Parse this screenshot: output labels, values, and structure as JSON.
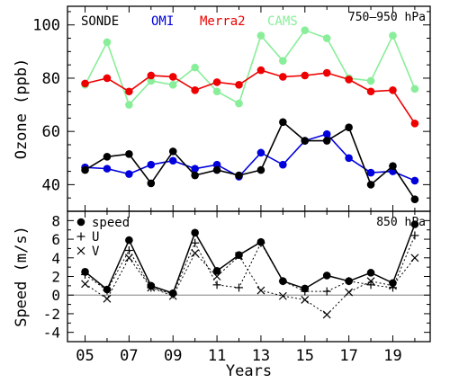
{
  "chart_data": [
    {
      "type": "line",
      "annotation": "750–950 hPa",
      "ylabel": "Ozone (ppb)",
      "ylim": [
        30,
        107
      ],
      "yticks": [
        40,
        60,
        80,
        100
      ],
      "x": [
        2005,
        2006,
        2007,
        2008,
        2009,
        2010,
        2011,
        2012,
        2013,
        2014,
        2015,
        2016,
        2017,
        2018,
        2019,
        2020
      ],
      "series": [
        {
          "name": "SONDE",
          "color": "#000000",
          "values": [
            45.5,
            50.5,
            51.5,
            40.5,
            52.5,
            43.5,
            45.5,
            43.5,
            45.5,
            63.5,
            56.5,
            56.5,
            61.5,
            40.0,
            47.0,
            34.5
          ]
        },
        {
          "name": "OMI",
          "color": "#0000dd",
          "values": [
            46.5,
            46.0,
            44.0,
            47.5,
            49.0,
            46.0,
            47.5,
            43.0,
            52.0,
            47.5,
            56.5,
            59.0,
            50.0,
            44.5,
            45.0,
            41.5
          ]
        },
        {
          "name": "Merra2",
          "color": "#ee0000",
          "values": [
            78.0,
            80.0,
            75.0,
            81.0,
            80.5,
            75.5,
            78.5,
            77.5,
            83.0,
            80.5,
            81.0,
            82.0,
            79.5,
            75.0,
            75.5,
            63.0
          ]
        },
        {
          "name": "CAMS",
          "color": "#88ee99",
          "values": [
            77.5,
            93.5,
            70.0,
            79.0,
            77.5,
            84.0,
            75.0,
            70.5,
            96.0,
            86.5,
            98.0,
            95.0,
            80.0,
            79.0,
            96.0,
            76.0
          ]
        }
      ]
    },
    {
      "type": "line",
      "annotation": "850 hPa",
      "xlabel": "Years",
      "ylabel": "Speed (m/s)",
      "ylim": [
        -5,
        9
      ],
      "yticks": [
        -4,
        -2,
        0,
        2,
        4,
        6,
        8
      ],
      "zero_line": true,
      "x": [
        2005,
        2006,
        2007,
        2008,
        2009,
        2010,
        2011,
        2012,
        2013,
        2014,
        2015,
        2016,
        2017,
        2018,
        2019,
        2020
      ],
      "xtick_labels": [
        "05",
        "07",
        "09",
        "11",
        "13",
        "15",
        "17",
        "19"
      ],
      "xtick_values": [
        2005,
        2007,
        2009,
        2011,
        2013,
        2015,
        2017,
        2019
      ],
      "series": [
        {
          "name": "speed",
          "marker": "circle",
          "line": "solid",
          "values": [
            2.5,
            0.6,
            5.9,
            1.0,
            0.2,
            6.7,
            2.6,
            4.3,
            5.7,
            1.5,
            0.7,
            2.1,
            1.5,
            2.4,
            1.3,
            7.6
          ]
        },
        {
          "name": "U",
          "marker": "plus",
          "line": "dotted",
          "values": [
            2.2,
            0.5,
            4.8,
            0.8,
            0.1,
            5.6,
            1.1,
            0.8,
            5.6,
            1.5,
            0.4,
            0.4,
            1.5,
            1.1,
            0.8,
            6.4
          ]
        },
        {
          "name": "V",
          "marker": "cross",
          "line": "dotted",
          "values": [
            1.2,
            -0.4,
            4.0,
            0.8,
            -0.1,
            4.5,
            2.0,
            4.2,
            0.5,
            -0.1,
            -0.5,
            -2.1,
            0.3,
            1.5,
            1.0,
            4.0
          ]
        }
      ]
    }
  ]
}
